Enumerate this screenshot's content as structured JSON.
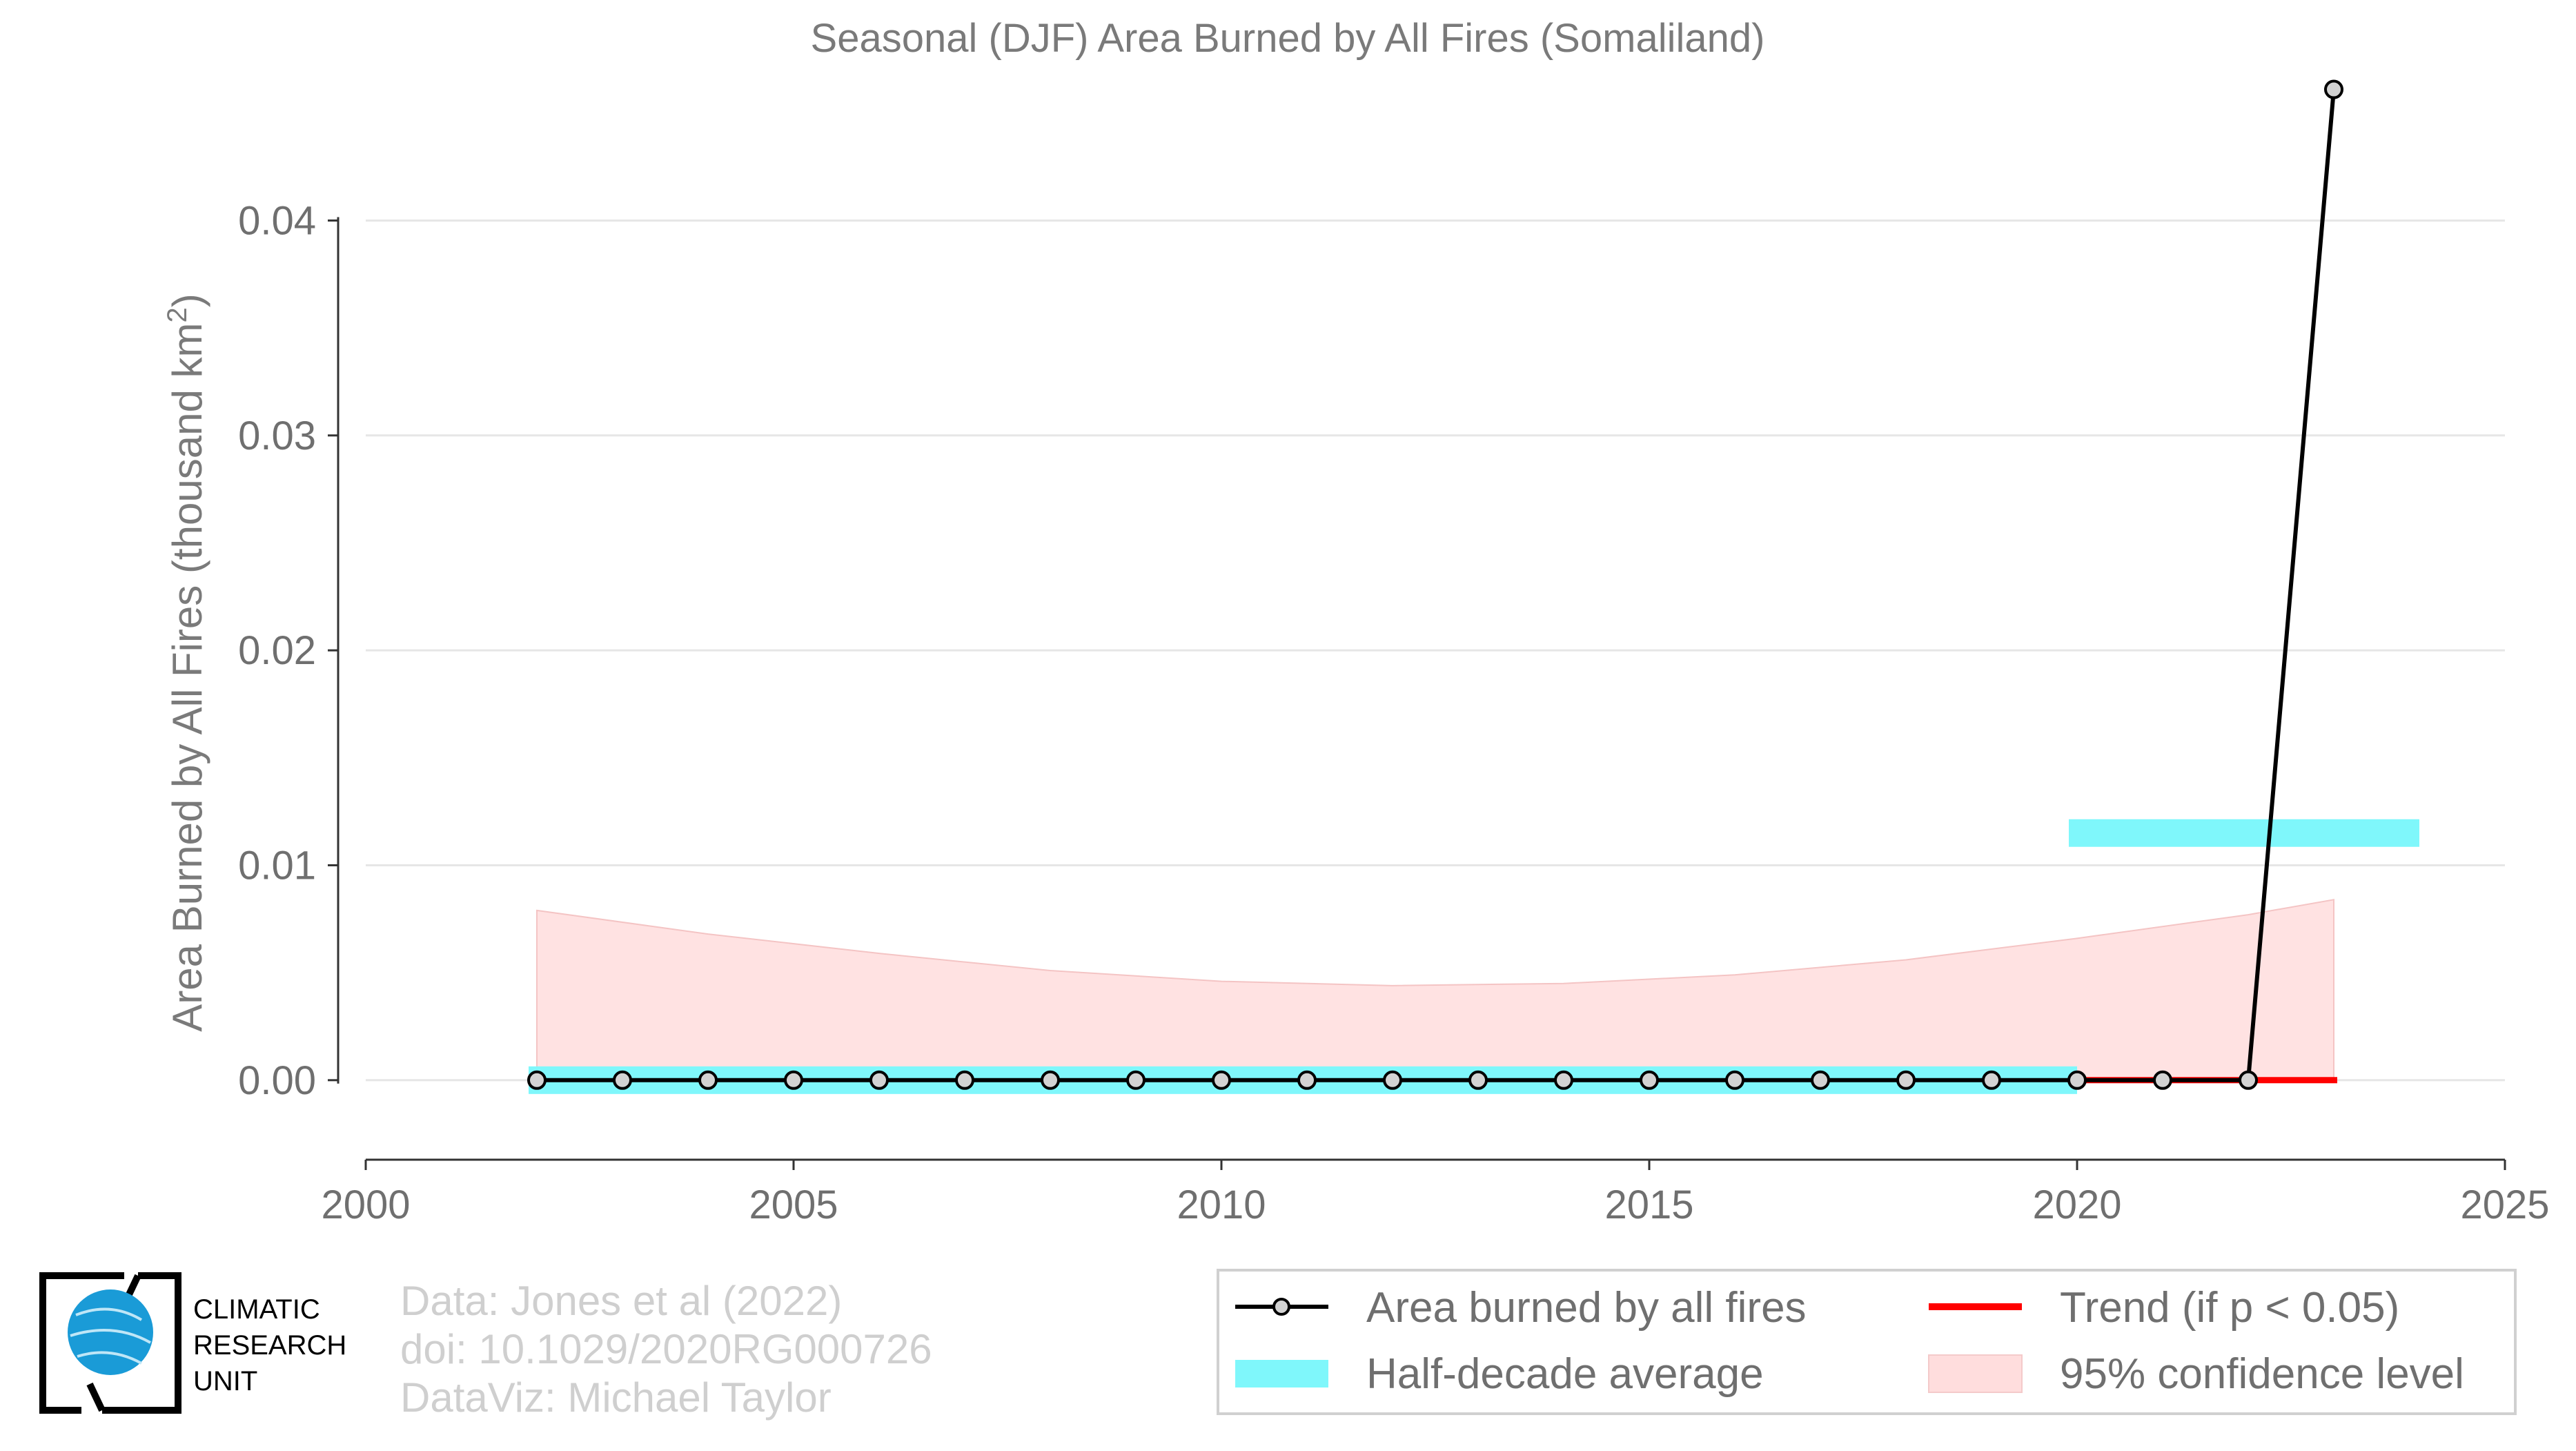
{
  "chart_data": {
    "type": "line",
    "title": "Seasonal (DJF) Area Burned by All Fires (Somaliland)",
    "ylabel": "Area Burned by All Fires (thousand km",
    "ylabel_sup": "2",
    "ylabel_end": ")",
    "xlabel": "",
    "xlim": [
      2000,
      2025
    ],
    "ylim": [
      -0.0037,
      0.0457
    ],
    "x_ticks": [
      "2000",
      "2005",
      "2010",
      "2015",
      "2020",
      "2025"
    ],
    "y_ticks": [
      "0.00",
      "0.01",
      "0.02",
      "0.03",
      "0.04"
    ],
    "grid": true,
    "series": [
      {
        "name": "Area burned by all fires",
        "type": "line-marker",
        "color": "#000000",
        "x": [
          2002,
          2003,
          2004,
          2005,
          2006,
          2007,
          2008,
          2009,
          2010,
          2011,
          2012,
          2013,
          2014,
          2015,
          2016,
          2017,
          2018,
          2019,
          2020,
          2021,
          2022,
          2023
        ],
        "y": [
          0,
          0,
          0,
          0,
          0,
          0,
          0,
          0,
          0,
          0,
          0,
          0,
          0,
          0,
          0,
          0,
          0,
          0,
          0,
          0,
          0,
          0.0461
        ]
      },
      {
        "name": "Half-decade average",
        "type": "segments",
        "color": "#7ff7fb",
        "segments": [
          {
            "x0": 2002,
            "x1": 2020,
            "y": 0
          },
          {
            "x0": 2020,
            "x1": 2024,
            "y": 0.0115
          }
        ]
      },
      {
        "name": "Trend (if p < 0.05)",
        "type": "line",
        "color": "#ff0000",
        "x": [
          2020,
          2023
        ],
        "y": [
          0,
          0
        ]
      },
      {
        "name": "95% confidence level",
        "type": "band",
        "color": "#ffdddd",
        "x": [
          2002,
          2004,
          2006,
          2008,
          2010,
          2012,
          2014,
          2016,
          2018,
          2020,
          2022,
          2023
        ],
        "upper": [
          0.0079,
          0.0068,
          0.0059,
          0.0051,
          0.0046,
          0.0044,
          0.0045,
          0.0049,
          0.0056,
          0.0066,
          0.0077,
          0.0084
        ],
        "lower": [
          0,
          0,
          0,
          0,
          0,
          0,
          0,
          0,
          0,
          0,
          0,
          0
        ]
      }
    ],
    "legend_position": "bottom-right",
    "legend": [
      {
        "label": "Area burned by all fires",
        "kind": "line-marker",
        "color": "#000000"
      },
      {
        "label": "Trend (if p < 0.05)",
        "kind": "line",
        "color": "#ff0000"
      },
      {
        "label": "Half-decade average",
        "kind": "bar",
        "color": "#7ff7fb"
      },
      {
        "label": "95% confidence level",
        "kind": "patch",
        "color": "#ffdddd"
      }
    ]
  },
  "credits": {
    "line1": "Data: Jones et al (2022)",
    "line2": "doi: 10.1029/2020RG000726",
    "line3": "DataViz: Michael Taylor"
  },
  "logo": {
    "line1": "CLIMATIC",
    "line2": "RESEARCH",
    "line3": "UNIT",
    "globe_color": "#1a9bd7"
  }
}
